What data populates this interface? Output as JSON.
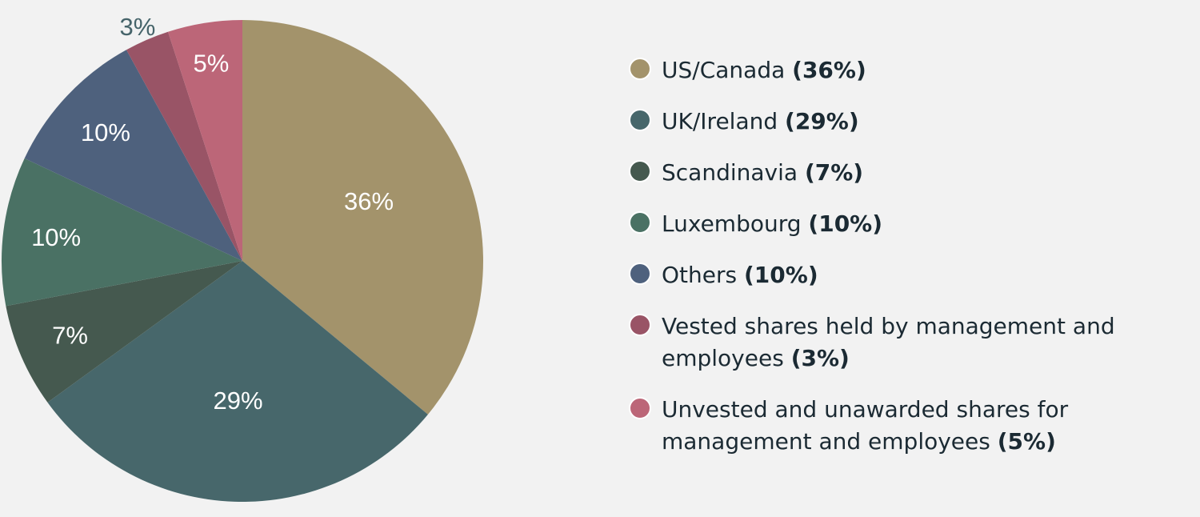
{
  "chart_data": {
    "type": "pie",
    "slices": [
      {
        "label": "US/Canada",
        "value": 36,
        "value_label": "36%",
        "color": "#a3936b",
        "legend_pct": "(36%)",
        "label_placement": "inside"
      },
      {
        "label": "UK/Ireland",
        "value": 29,
        "value_label": "29%",
        "color": "#47676b",
        "legend_pct": "(29%)",
        "label_placement": "inside"
      },
      {
        "label": "Scandinavia",
        "value": 7,
        "value_label": "7%",
        "color": "#45594f",
        "legend_pct": "(7%)",
        "label_placement": "inside"
      },
      {
        "label": "Luxembourg",
        "value": 10,
        "value_label": "10%",
        "color": "#4a7164",
        "legend_pct": "(10%)",
        "label_placement": "inside"
      },
      {
        "label": "Others",
        "value": 10,
        "value_label": "10%",
        "color": "#4e617d",
        "legend_pct": "(10%)",
        "label_placement": "inside"
      },
      {
        "label": "Vested shares held by management and employees",
        "value": 3,
        "value_label": "3%",
        "color": "#995466",
        "legend_pct": "(3%)",
        "label_placement": "outside"
      },
      {
        "label": "Unvested and unawarded shares for management and employees",
        "value": 5,
        "value_label": "5%",
        "color": "#bc6678",
        "legend_pct": "(5%)",
        "label_placement": "inside"
      }
    ],
    "start_angle": "12 o'clock",
    "direction": "clockwise",
    "legend_position": "right"
  }
}
